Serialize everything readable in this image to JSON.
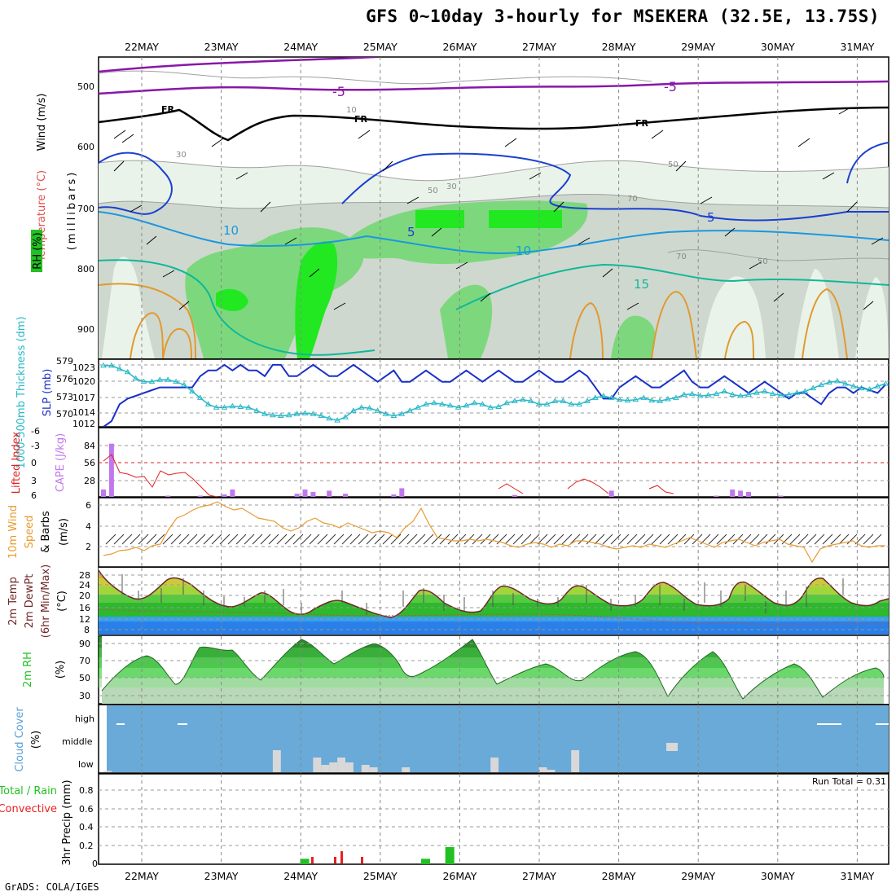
{
  "title": "GFS 0~10day 3-hourly for MSEKERA (32.5E, 13.75S)",
  "credit": "GrADS: COLA/IGES",
  "dates": [
    "22MAY",
    "23MAY",
    "24MAY",
    "25MAY",
    "26MAY",
    "27MAY",
    "28MAY",
    "29MAY",
    "30MAY",
    "31MAY"
  ],
  "colors": {
    "rh_light": "#eaf3ea",
    "rh_mid": "#cfd8cf",
    "rh_green": "#7dd87d",
    "rh_bright": "#22e822",
    "temp_purple": "#8a16a8",
    "temp_blue": "#1a40d0",
    "temp_lightblue": "#1a98e0",
    "temp_teal": "#10b898",
    "temp_orange": "#e09a30",
    "slp": "#1a30c8",
    "thickness": "#28b8c8",
    "cape": "#c078ee",
    "li": "#e02020",
    "wind10": "#e89a30",
    "cloud_blue": "#6aaad8",
    "cloud_grey": "#d8d8d8",
    "precip_green": "#22c022",
    "precip_red": "#e82020"
  },
  "panels": {
    "upper": {
      "ylabels": {
        "wind": "Wind (m/s)",
        "temp": "Temperature (°C)",
        "rh": "RH (%)",
        "axis": "(millibars)"
      },
      "yticks": [
        "500",
        "600",
        "700",
        "800",
        "900"
      ],
      "labels": {
        "fr": [
          "FR",
          "FR",
          "FR"
        ],
        "purple5": [
          "-5",
          "-5"
        ],
        "blue5": [
          "5",
          "5"
        ],
        "lb10": [
          "10",
          "10"
        ],
        "teal15": [
          "15"
        ],
        "rhval": [
          "10",
          "30",
          "50",
          "70",
          "30",
          "50",
          "70",
          "50"
        ]
      }
    },
    "slp": {
      "ylabels": {
        "thick": "1000-500mb Thickness (dm)",
        "slp": "SLP (mb)"
      },
      "yticks_left": [
        "579",
        "576",
        "573",
        "570"
      ],
      "yticks_right": [
        "1023",
        "1020",
        "1017",
        "1014",
        "1012"
      ]
    },
    "cape": {
      "ylabels": {
        "li": "Lifted Index",
        "cape": "CAPE (J/kg)"
      },
      "yticks_left": [
        "-6",
        "-3",
        "0",
        "3",
        "6"
      ],
      "yticks_right": [
        "84",
        "56",
        "28"
      ]
    },
    "wind10": {
      "ylabels": {
        "a": "10m Wind",
        "b": "Speed",
        "c": "& Barbs",
        "d": "(m/s)"
      },
      "yticks": [
        "6",
        "4",
        "2"
      ]
    },
    "temp2m": {
      "ylabels": {
        "a": "2m Temp",
        "b": "2m DewPt",
        "c": "(6hr Min/Max)",
        "d": "(°C)"
      },
      "yticks": [
        "28",
        "24",
        "20",
        "16",
        "12",
        "8"
      ]
    },
    "rh2m": {
      "ylabels": {
        "a": "2m RH",
        "b": "(%)"
      },
      "yticks": [
        "90",
        "70",
        "50",
        "30"
      ]
    },
    "cloud": {
      "ylabels": {
        "a": "Cloud Cover",
        "b": "(%)"
      },
      "levels": [
        "high",
        "middle",
        "low"
      ]
    },
    "precip": {
      "ylabels": {
        "a": "Total / Rain",
        "b": "Convective",
        "c": "3hr Precip (mm)"
      },
      "yticks": [
        "0.8",
        "0.6",
        "0.4",
        "0.2",
        "0"
      ],
      "run_total": "Run Total = 0.31"
    }
  },
  "chart_data": [
    {
      "type": "line",
      "name": "slp",
      "ylim": [
        1012,
        1024
      ],
      "values": [
        1012,
        1013,
        1016,
        1017,
        1017.5,
        1018,
        1018.5,
        1019,
        1019,
        1019,
        1019,
        1019,
        1021,
        1022,
        1022,
        1023,
        1022,
        1023,
        1022,
        1022,
        1021,
        1023,
        1023,
        1021,
        1021,
        1022,
        1023,
        1022,
        1021,
        1021,
        1022,
        1023,
        1022,
        1021,
        1020,
        1021,
        1022,
        1020,
        1020,
        1021,
        1022,
        1021,
        1020,
        1020,
        1021,
        1022,
        1021,
        1020,
        1021,
        1022,
        1021,
        1020,
        1020,
        1021,
        1022,
        1021,
        1020,
        1020,
        1021,
        1022,
        1021,
        1019,
        1017,
        1017,
        1019,
        1020,
        1021,
        1020,
        1019,
        1019,
        1020,
        1021,
        1022,
        1020,
        1019,
        1019,
        1020,
        1021,
        1020,
        1019,
        1018,
        1019,
        1020,
        1019,
        1018,
        1017,
        1018,
        1018,
        1017,
        1016,
        1018,
        1019,
        1019,
        1018,
        1019,
        1018.5,
        1018,
        1019.5
      ]
    },
    {
      "type": "line",
      "name": "thickness",
      "ylim": [
        568.5,
        579
      ],
      "values": [
        578,
        578,
        577.5,
        577,
        576,
        575.5,
        575.5,
        575.8,
        575.8,
        575.5,
        575,
        574,
        573,
        572,
        571.5,
        571.5,
        571.7,
        571.6,
        571.5,
        571,
        570.5,
        570.3,
        570.2,
        570.3,
        570.5,
        570.6,
        570.5,
        570.2,
        569.8,
        569.5,
        570,
        571,
        571.5,
        571.4,
        571,
        570.5,
        570.2,
        570.5,
        571,
        571.5,
        572,
        572.2,
        572,
        571.8,
        571.5,
        571.8,
        572.2,
        572,
        571.5,
        571.6,
        572.2,
        572.5,
        572.7,
        572.5,
        572,
        572,
        572.5,
        572.5,
        572,
        572,
        572.5,
        573,
        573.3,
        573,
        572.7,
        572.6,
        572.7,
        573,
        572.6,
        572.5,
        572.8,
        573,
        573.5,
        573.6,
        573.3,
        573.4,
        573.6,
        574,
        573.5,
        573.3,
        573.5,
        573.8,
        574,
        573.6,
        573.4,
        573.5,
        573.8,
        574,
        574.5,
        575,
        575.4,
        575.6,
        575.2,
        574.8,
        574.5,
        574.3,
        574.8,
        575.2
      ]
    },
    {
      "type": "bar",
      "name": "cape",
      "ylim": [
        0,
        112
      ],
      "values": [
        12,
        86,
        0,
        0,
        0,
        0,
        0,
        0,
        2,
        0,
        0,
        0,
        2,
        0,
        0,
        4,
        12,
        0,
        0,
        0,
        0,
        0,
        0,
        0,
        5,
        12,
        8,
        0,
        10,
        0,
        5,
        0,
        0,
        0,
        0,
        0,
        4,
        14,
        0,
        0,
        0,
        0,
        0,
        0,
        0,
        0,
        0,
        0,
        0,
        0,
        0,
        3,
        0,
        0,
        0,
        0,
        0,
        0,
        0,
        0,
        0,
        0,
        0,
        10,
        0,
        0,
        0,
        0,
        0,
        0,
        0,
        0,
        0,
        0,
        0,
        0,
        2,
        0,
        12,
        10,
        8,
        0,
        0,
        0,
        2,
        0,
        0,
        0,
        0,
        0,
        0,
        0,
        0,
        0,
        0,
        0,
        0,
        0
      ],
      "index": 12
    },
    {
      "type": "bar",
      "name": "cloud_low",
      "ylim": [
        0,
        100
      ],
      "values": [
        5,
        0,
        0,
        0,
        0,
        0,
        0,
        0,
        0,
        0,
        0,
        0,
        0,
        0,
        0,
        0,
        0,
        0,
        0,
        0,
        0,
        90,
        0,
        0,
        0,
        0,
        60,
        30,
        40,
        60,
        40,
        0,
        30,
        20,
        0,
        0,
        0,
        20,
        0,
        0,
        0,
        0,
        0,
        0,
        0,
        0,
        0,
        0,
        60,
        0,
        0,
        0,
        0,
        0,
        20,
        10,
        0,
        0,
        90,
        0,
        0,
        0,
        0,
        0,
        0,
        0,
        0,
        0,
        0,
        0,
        0,
        0,
        0,
        0,
        0,
        0,
        0,
        0,
        0,
        0,
        0,
        0,
        0,
        0,
        0,
        0,
        0,
        0,
        0,
        0,
        0,
        0,
        0,
        0,
        0,
        0,
        0,
        0
      ]
    },
    {
      "type": "bar",
      "name": "precip_total",
      "ylim": [
        0,
        1
      ],
      "values": [
        0,
        0,
        0,
        0,
        0,
        0,
        0,
        0,
        0,
        0,
        0,
        0,
        0,
        0,
        0,
        0,
        0,
        0,
        0,
        0,
        0,
        0,
        0,
        0,
        0,
        0.06,
        0,
        0,
        0,
        0,
        0,
        0,
        0,
        0,
        0,
        0,
        0,
        0,
        0,
        0,
        0.06,
        0,
        0,
        0.19,
        0,
        0,
        0,
        0,
        0,
        0,
        0,
        0,
        0,
        0,
        0,
        0,
        0,
        0,
        0,
        0,
        0,
        0,
        0,
        0,
        0,
        0,
        0,
        0,
        0,
        0,
        0,
        0,
        0,
        0,
        0,
        0,
        0,
        0,
        0,
        0,
        0,
        0,
        0,
        0,
        0,
        0,
        0,
        0,
        0,
        0,
        0,
        0,
        0,
        0,
        0,
        0,
        0,
        0
      ]
    }
  ]
}
